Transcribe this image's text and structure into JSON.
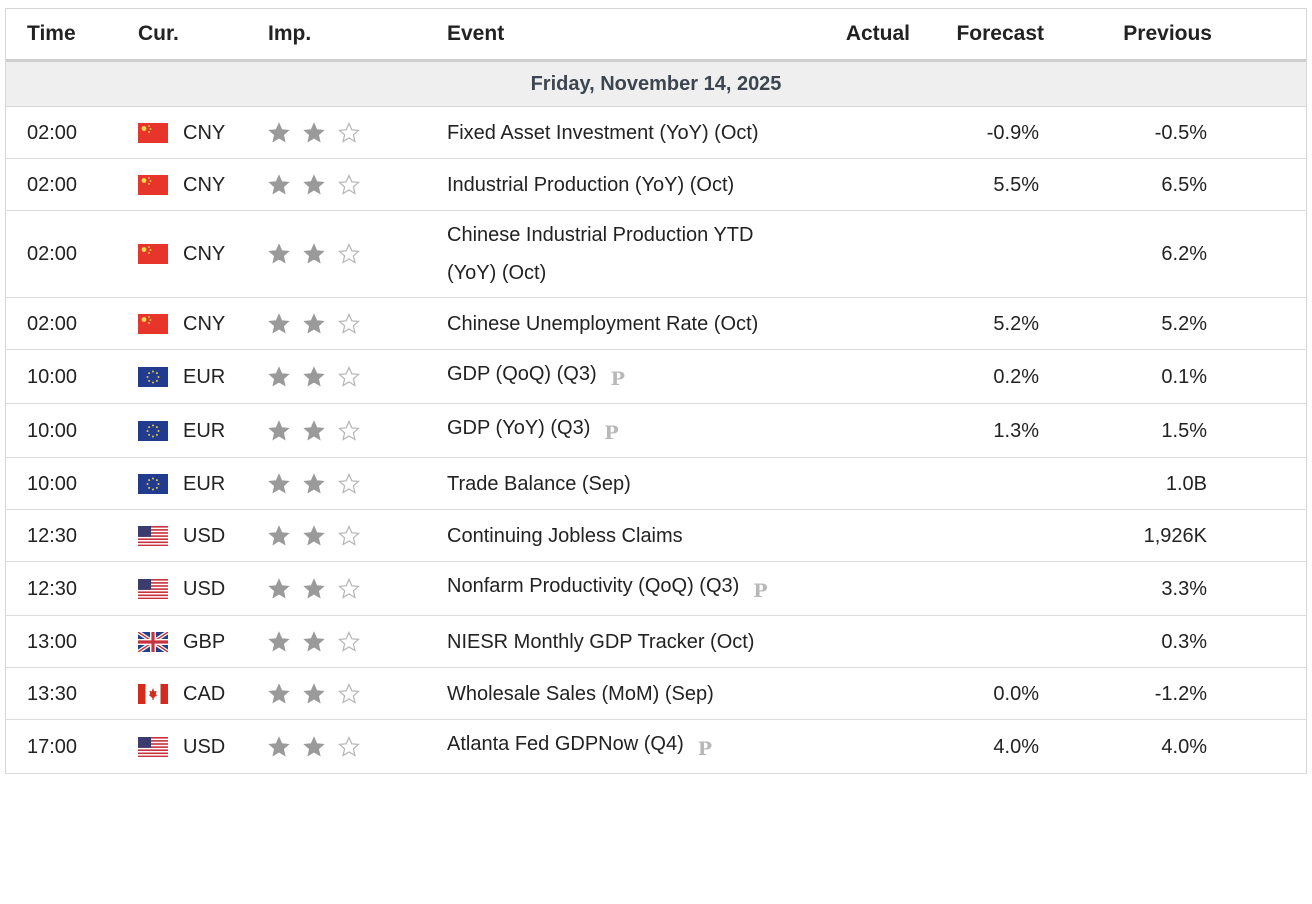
{
  "header": {
    "time": "Time",
    "currency": "Cur.",
    "importance": "Imp.",
    "event": "Event",
    "actual": "Actual",
    "forecast": "Forecast",
    "previous": "Previous"
  },
  "date": "Friday, November 14, 2025",
  "rows": [
    {
      "time": "02:00",
      "currency": "CNY",
      "importance": 2,
      "event": "Fixed Asset Investment (YoY) (Oct)",
      "forecast": "-0.9%",
      "previous": "-0.5%"
    },
    {
      "time": "02:00",
      "currency": "CNY",
      "importance": 2,
      "event": "Industrial Production (YoY) (Oct)",
      "forecast": "5.5%",
      "previous": "6.5%"
    },
    {
      "time": "02:00",
      "currency": "CNY",
      "importance": 2,
      "event": "Chinese Industrial Production YTD (YoY) (Oct)",
      "previous": "6.2%"
    },
    {
      "time": "02:00",
      "currency": "CNY",
      "importance": 2,
      "event": "Chinese Unemployment Rate (Oct)",
      "forecast": "5.2%",
      "previous": "5.2%"
    },
    {
      "time": "10:00",
      "currency": "EUR",
      "importance": 2,
      "event": "GDP (QoQ) (Q3)",
      "preliminary": "P",
      "forecast": "0.2%",
      "previous": "0.1%"
    },
    {
      "time": "10:00",
      "currency": "EUR",
      "importance": 2,
      "event": "GDP (YoY) (Q3)",
      "preliminary": "P",
      "forecast": "1.3%",
      "previous": "1.5%"
    },
    {
      "time": "10:00",
      "currency": "EUR",
      "importance": 2,
      "event": "Trade Balance (Sep)",
      "previous": "1.0B"
    },
    {
      "time": "12:30",
      "currency": "USD",
      "importance": 2,
      "event": "Continuing Jobless Claims",
      "previous": "1,926K"
    },
    {
      "time": "12:30",
      "currency": "USD",
      "importance": 2,
      "event": "Nonfarm Productivity (QoQ) (Q3)",
      "preliminary": "P",
      "previous": "3.3%"
    },
    {
      "time": "13:00",
      "currency": "GBP",
      "importance": 2,
      "event": "NIESR Monthly GDP Tracker (Oct)",
      "previous": "0.3%"
    },
    {
      "time": "13:30",
      "currency": "CAD",
      "importance": 2,
      "event": "Wholesale Sales (MoM) (Sep)",
      "forecast": "0.0%",
      "previous": "-1.2%"
    },
    {
      "time": "17:00",
      "currency": "USD",
      "importance": 2,
      "event": "Atlanta Fed GDPNow (Q4)",
      "preliminary": "P",
      "forecast": "4.0%",
      "previous": "4.0%"
    }
  ]
}
